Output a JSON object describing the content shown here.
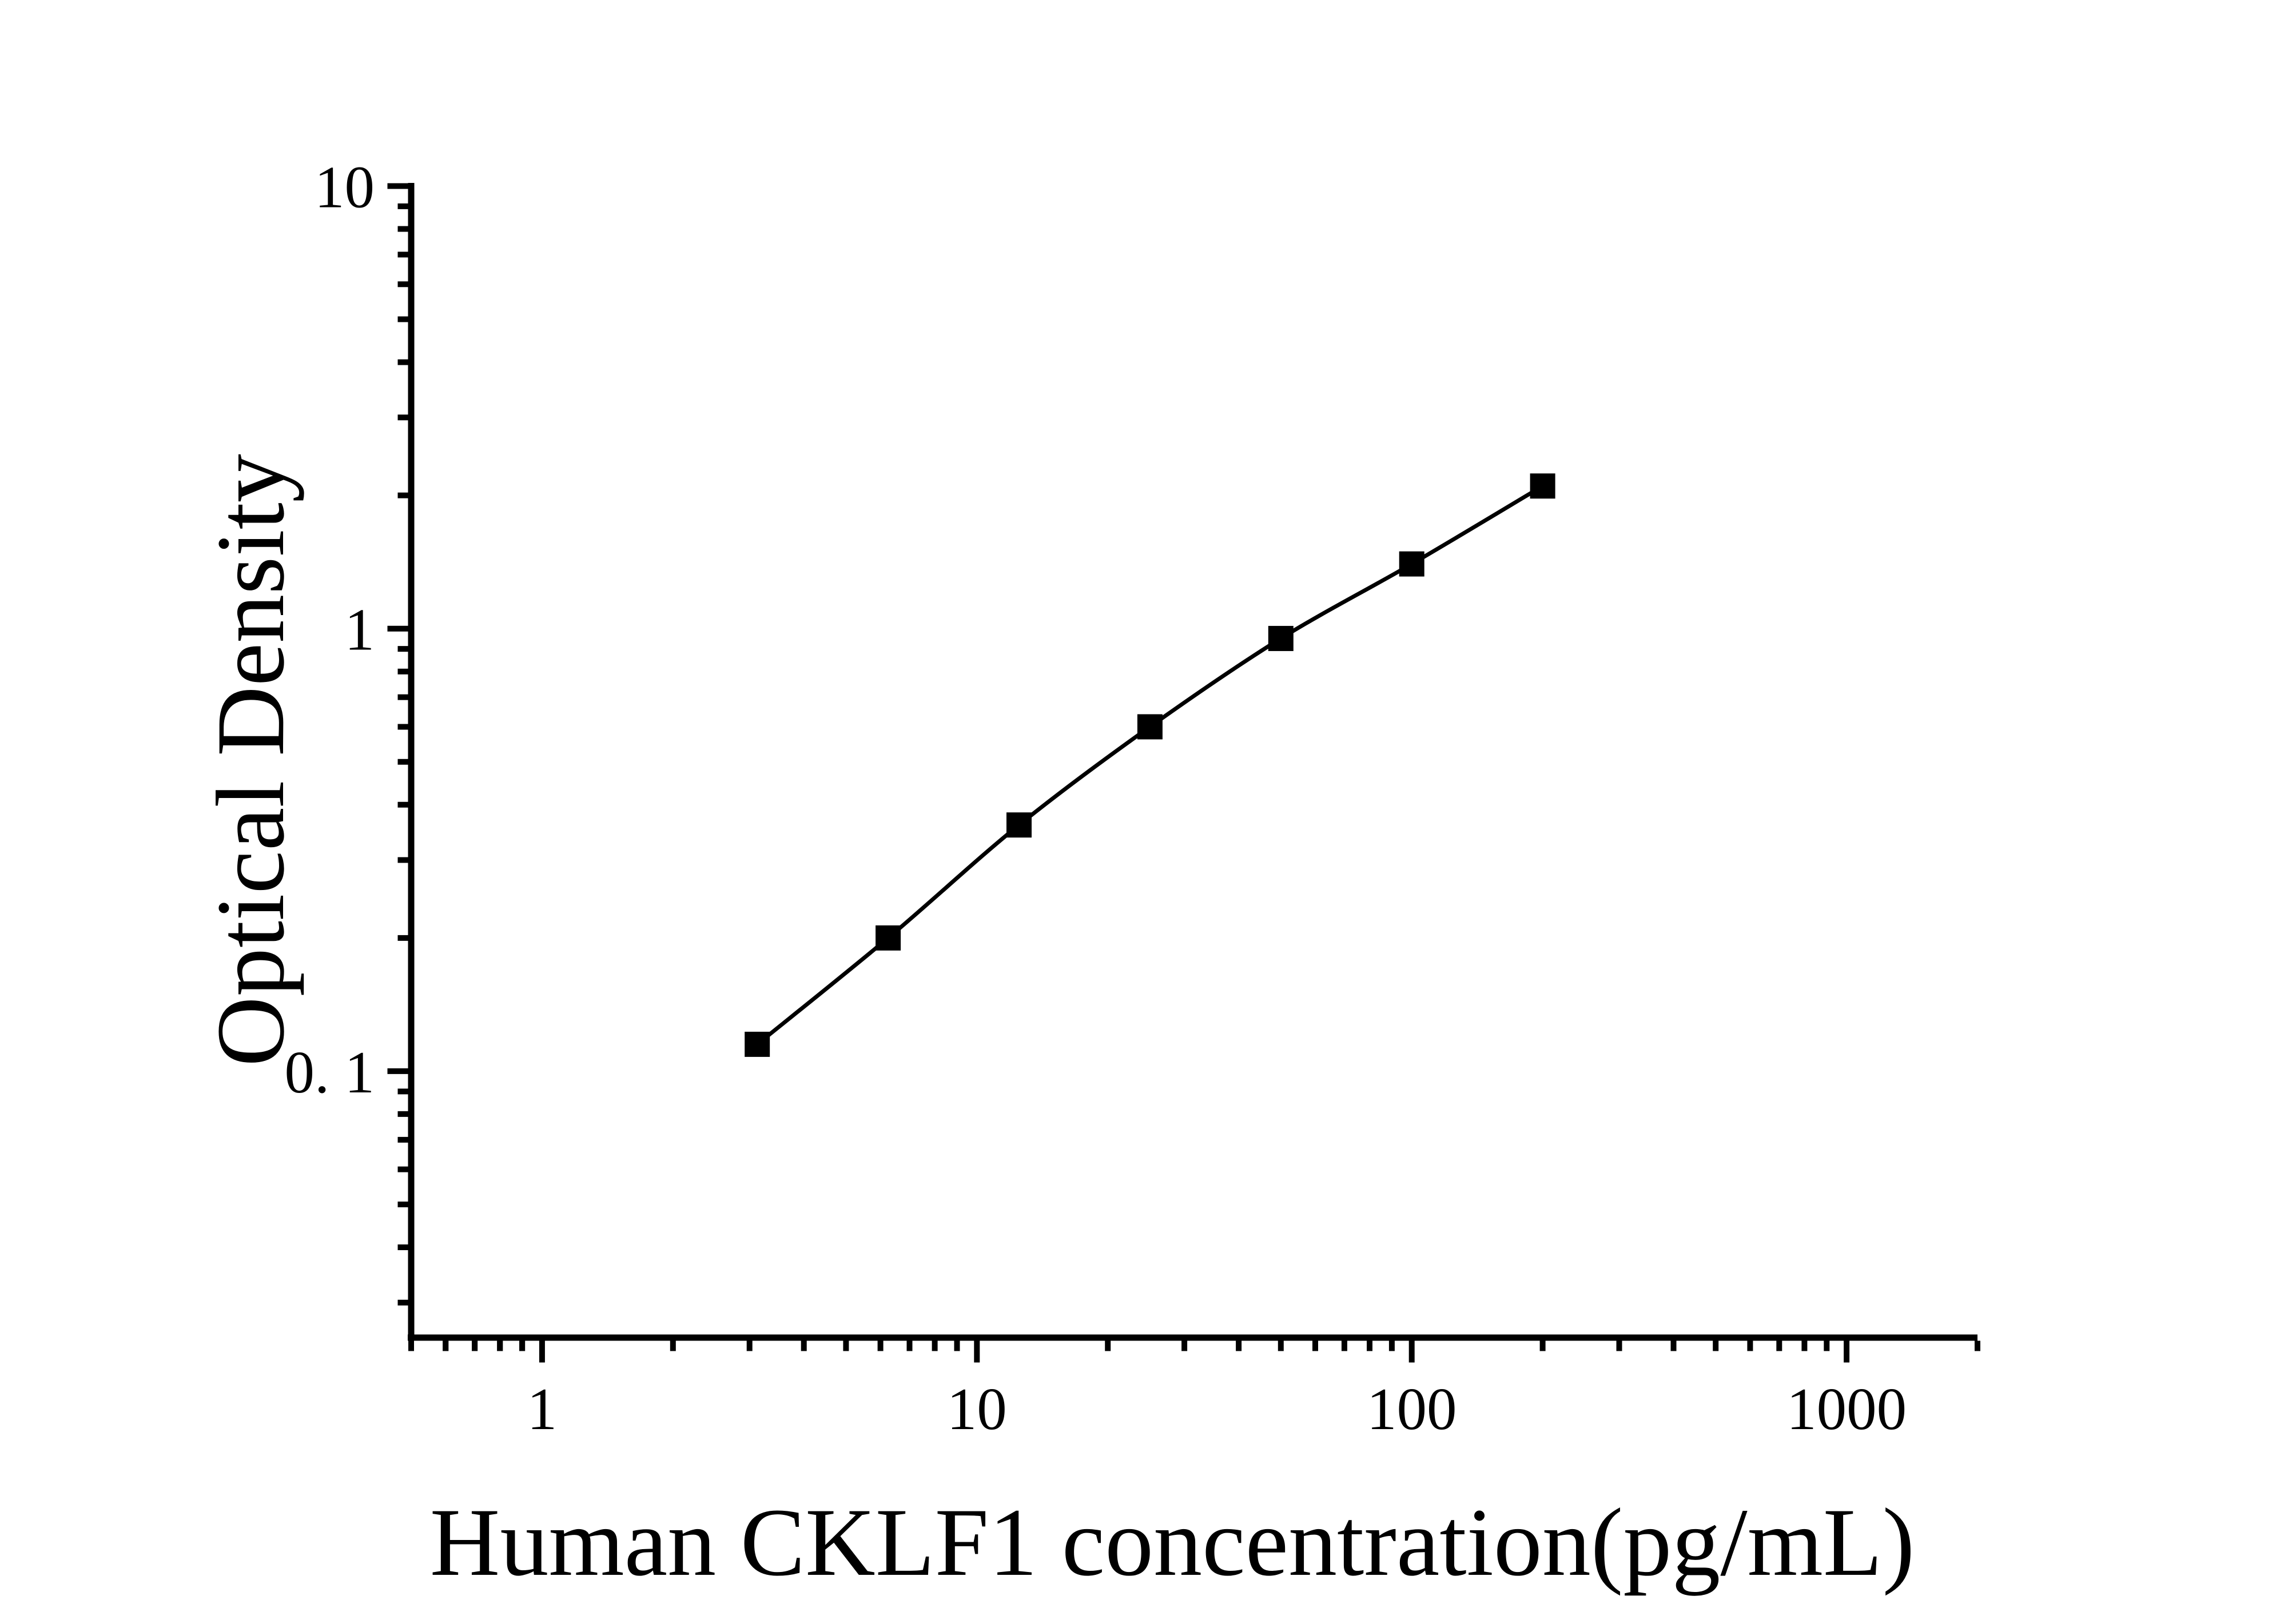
{
  "chart_data": {
    "type": "line",
    "subtype": "standard-curve scatter with smoothed connecting line",
    "title": "",
    "xlabel": "Human CKLF1 concentration(pg/mL)",
    "ylabel": "Optical Density",
    "xscale": "log",
    "yscale": "log",
    "xlim": [
      0.5,
      2000
    ],
    "ylim": [
      0.025,
      10
    ],
    "grid": "off",
    "legend": "none",
    "x": [
      3.125,
      6.25,
      12.5,
      25,
      50,
      100,
      200
    ],
    "series": [
      {
        "name": "Optical Density",
        "values": [
          0.115,
          0.2,
          0.36,
          0.6,
          0.95,
          1.4,
          2.1
        ]
      }
    ],
    "x_major_ticks": [
      1,
      10,
      100,
      1000
    ],
    "x_tick_labels": [
      "1",
      "10",
      "100",
      "1000"
    ],
    "y_major_ticks": [
      10,
      1,
      0.1
    ],
    "y_tick_labels": [
      "10",
      "1",
      "0. 1"
    ],
    "marker": "filled-square",
    "colors": {
      "line": "#000000",
      "marker": "#000000",
      "axis": "#000000",
      "text": "#000000",
      "background": "#ffffff"
    }
  }
}
